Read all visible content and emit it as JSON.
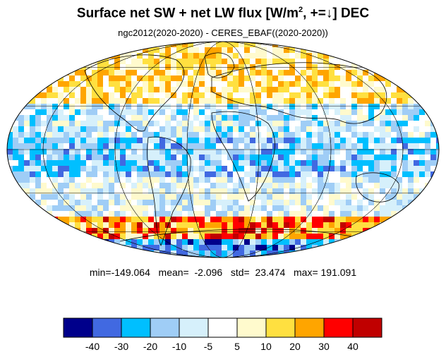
{
  "title": {
    "main": "Surface net SW + net LW flux  [W/m",
    "superscript": "2",
    "tail": ", +=↓]  DEC"
  },
  "subtitle": "ngc2012(2020-2020) - CERES_EBAF((2020-2020))",
  "stats": {
    "text": "min=-149.064   mean=  -2.096   std=  23.474   max= 191.091",
    "min": -149.064,
    "mean": -2.096,
    "std": 23.474,
    "max": 191.091
  },
  "colorbar": {
    "colors": [
      "#00008b",
      "#4169e1",
      "#00bfff",
      "#9fcdf6",
      "#d6f0fb",
      "#ffffff",
      "#fffacd",
      "#ffe040",
      "#ffa500",
      "#ff0000",
      "#c00000"
    ],
    "labels": [
      "-40",
      "-30",
      "-20",
      "-10",
      "-5",
      "5",
      "10",
      "20",
      "30",
      "40"
    ]
  },
  "map": {
    "projection": "mollweide",
    "grid": true,
    "palette": [
      "#00008b",
      "#4169e1",
      "#00bfff",
      "#9fcdf6",
      "#d6f0fb",
      "#ffffff",
      "#fffacd",
      "#ffe040",
      "#ffa500",
      "#ff0000",
      "#c00000"
    ]
  }
}
